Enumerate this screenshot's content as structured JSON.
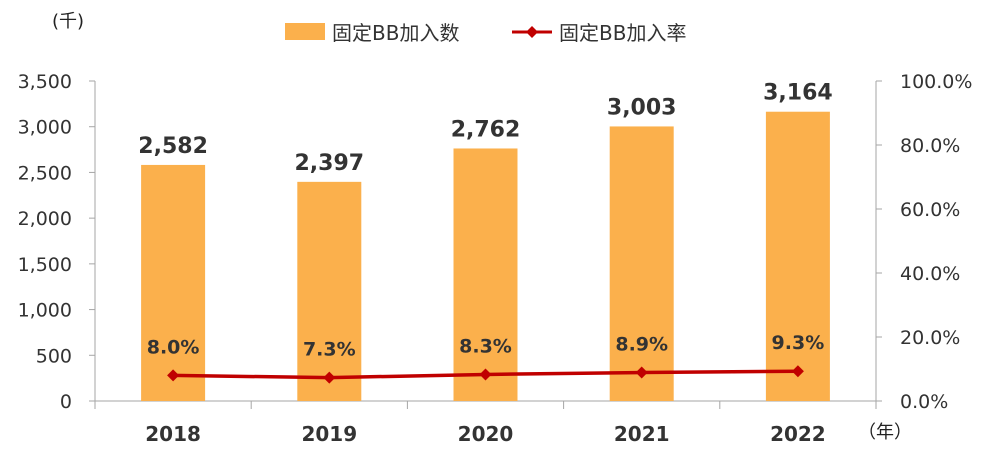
{
  "chart_data": {
    "type": "bar",
    "categories": [
      "2018",
      "2019",
      "2020",
      "2021",
      "2022"
    ],
    "series": [
      {
        "name": "固定BB加入数",
        "type": "bar",
        "axis": "left",
        "values": [
          2582,
          2397,
          2762,
          3003,
          3164
        ],
        "labels": [
          "2,582",
          "2,397",
          "2,762",
          "3,003",
          "3,164"
        ]
      },
      {
        "name": "固定BB加入率",
        "type": "line",
        "axis": "right",
        "values": [
          8.0,
          7.3,
          8.3,
          8.9,
          9.3
        ],
        "labels": [
          "8.0%",
          "7.3%",
          "8.3%",
          "8.9%",
          "9.3%"
        ]
      }
    ],
    "left_axis": {
      "unit_label": "(千)",
      "ylim": [
        0,
        3500
      ],
      "ticks": [
        0,
        500,
        1000,
        1500,
        2000,
        2500,
        3000,
        3500
      ],
      "tick_labels": [
        "0",
        "500",
        "1,000",
        "1,500",
        "2,000",
        "2,500",
        "3,000",
        "3,500"
      ]
    },
    "right_axis": {
      "ylim": [
        0,
        100
      ],
      "ticks": [
        0,
        20,
        40,
        60,
        80,
        100
      ],
      "tick_labels": [
        "0.0%",
        "20.0%",
        "40.0%",
        "60.0%",
        "80.0%",
        "100.0%"
      ]
    },
    "x_unit_label": "（年）",
    "legend_position": "top",
    "grid": false,
    "colors": {
      "bar": "#FBB04C",
      "line": "#C00000",
      "axis": "#A6A6A6"
    }
  }
}
